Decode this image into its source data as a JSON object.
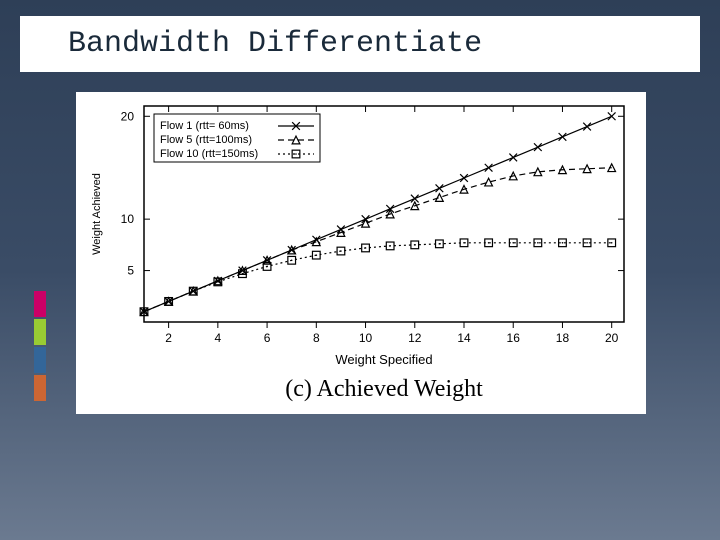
{
  "slide": {
    "title": "Bandwidth Differentiate",
    "background_gradient": [
      "#2e3f57",
      "#3a4c66",
      "#6b7a90"
    ],
    "title_bar_bg": "#ffffff",
    "title_font": "Courier New",
    "title_fontsize": 30,
    "title_color": "#1a2a3a",
    "accent_colors": [
      "#cc0066",
      "#99cc33",
      "#336699",
      "#cc6633"
    ]
  },
  "chart": {
    "type": "line",
    "caption": "(c) Achieved Weight",
    "caption_fontsize": 24,
    "caption_font": "Times New Roman",
    "xlabel": "Weight Specified",
    "ylabel": "Weight Achieved",
    "label_fontsize": 12,
    "tick_fontsize": 12,
    "xlim": [
      1,
      20.5
    ],
    "ylim": [
      0,
      21
    ],
    "xticks": [
      2,
      4,
      6,
      8,
      10,
      12,
      14,
      16,
      18,
      20
    ],
    "yticks": [
      5,
      10,
      20
    ],
    "background_color": "#ffffff",
    "axis_color": "#000000",
    "line_width": 1.2,
    "marker_size": 5,
    "legend": {
      "position": "upper-left",
      "border_color": "#000000",
      "items": [
        {
          "label": "Flow  1 (rtt= 60ms)",
          "marker": "x",
          "dash": "solid"
        },
        {
          "label": "Flow  5 (rtt=100ms)",
          "marker": "triangle",
          "dash": "dash"
        },
        {
          "label": "Flow 10 (rtt=150ms)",
          "marker": "square",
          "dash": "dot"
        }
      ]
    },
    "series": [
      {
        "name": "flow1",
        "marker": "x",
        "dash": "solid",
        "color": "#000000",
        "x": [
          1,
          2,
          3,
          4,
          5,
          6,
          7,
          8,
          9,
          10,
          11,
          12,
          13,
          14,
          15,
          16,
          17,
          18,
          19,
          20
        ],
        "y": [
          1,
          2,
          3,
          4,
          5,
          6,
          7,
          8,
          9,
          10,
          11,
          12,
          13,
          14,
          15,
          16,
          17,
          18,
          19,
          20
        ]
      },
      {
        "name": "flow5",
        "marker": "triangle",
        "dash": "dash",
        "color": "#000000",
        "x": [
          1,
          2,
          3,
          4,
          5,
          6,
          7,
          8,
          9,
          10,
          11,
          12,
          13,
          14,
          15,
          16,
          17,
          18,
          19,
          20
        ],
        "y": [
          1,
          2,
          3,
          4,
          5,
          6,
          7,
          7.8,
          8.7,
          9.6,
          10.5,
          11.3,
          12.1,
          12.9,
          13.6,
          14.2,
          14.6,
          14.8,
          14.9,
          15.0
        ]
      },
      {
        "name": "flow10",
        "marker": "square",
        "dash": "dot",
        "color": "#000000",
        "x": [
          1,
          2,
          3,
          4,
          5,
          6,
          7,
          8,
          9,
          10,
          11,
          12,
          13,
          14,
          15,
          16,
          17,
          18,
          19,
          20
        ],
        "y": [
          1,
          2,
          3,
          3.9,
          4.7,
          5.4,
          6.0,
          6.5,
          6.9,
          7.2,
          7.4,
          7.5,
          7.6,
          7.7,
          7.7,
          7.7,
          7.7,
          7.7,
          7.7,
          7.7
        ]
      }
    ]
  }
}
